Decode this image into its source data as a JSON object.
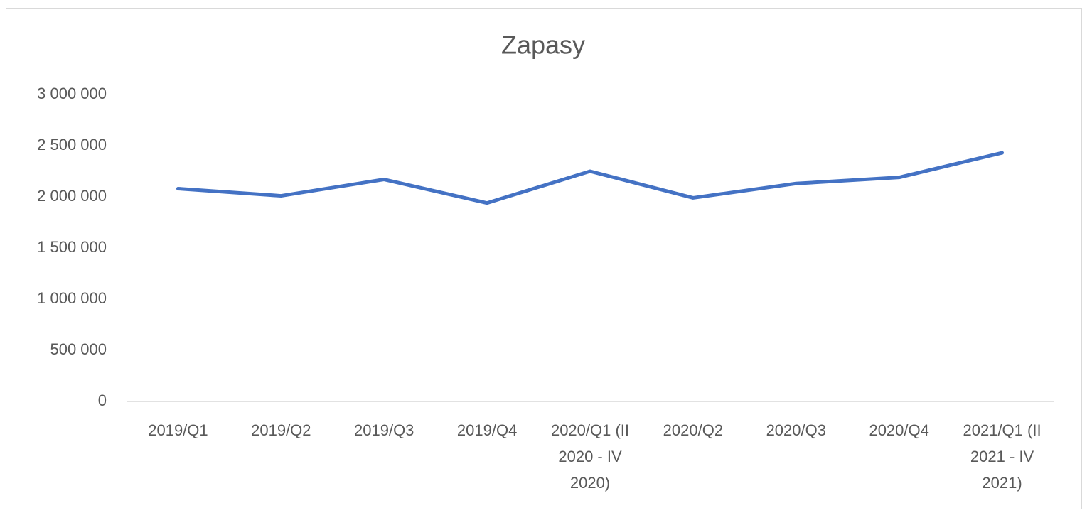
{
  "chart_data": {
    "type": "line",
    "title": "Zapasy",
    "categories": [
      "2019/Q1",
      "2019/Q2",
      "2019/Q3",
      "2019/Q4",
      "2020/Q1 (II 2020 - IV 2020)",
      "2020/Q2",
      "2020/Q3",
      "2020/Q4",
      "2021/Q1 (II 2021 - IV 2021)"
    ],
    "values": [
      2080000,
      2010000,
      2170000,
      1940000,
      2250000,
      1990000,
      2130000,
      2190000,
      2430000
    ],
    "color": "#4472c4",
    "ylim": [
      0,
      3000000
    ],
    "yticks": [
      0,
      {
        "value": 500000,
        "label": "500 000"
      },
      {
        "value": 1000000,
        "label": "1 000 000"
      },
      {
        "value": 1500000,
        "label": "1 500 000"
      },
      {
        "value": 2000000,
        "label": "2 000 000"
      },
      {
        "value": 2500000,
        "label": "2 500 000"
      },
      {
        "value": 3000000,
        "label": "3 000 000"
      }
    ],
    "grid": false
  }
}
